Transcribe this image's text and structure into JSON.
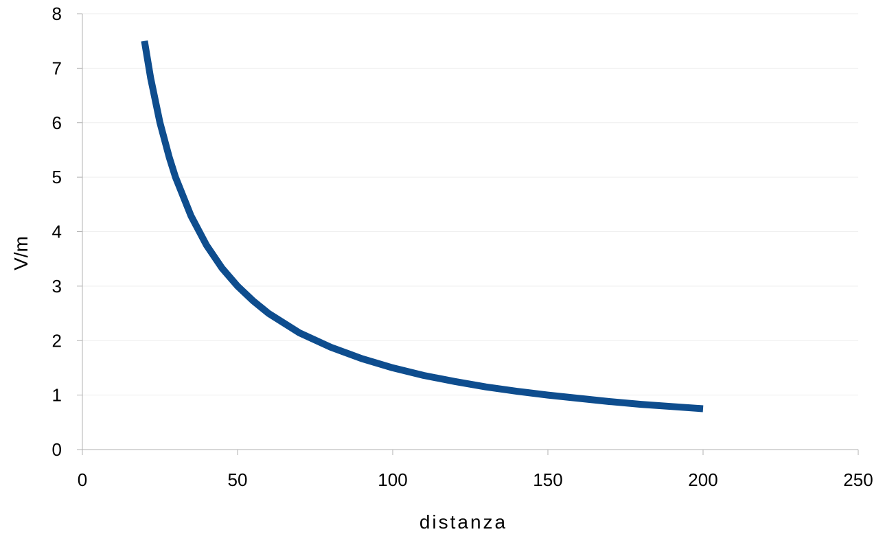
{
  "chart_data": {
    "type": "line",
    "title": "",
    "xlabel": "distanza",
    "ylabel": "V/m",
    "xlim": [
      0,
      250
    ],
    "ylim": [
      0,
      8
    ],
    "x_ticks": [
      0,
      50,
      100,
      150,
      200,
      250
    ],
    "y_ticks": [
      0,
      1,
      2,
      3,
      4,
      5,
      6,
      7,
      8
    ],
    "grid": "horizontal",
    "legend": "none",
    "series": [
      {
        "color": "#0e4d8e",
        "x": [
          20,
          22,
          25,
          28,
          30,
          35,
          40,
          45,
          50,
          55,
          60,
          70,
          80,
          90,
          100,
          110,
          120,
          130,
          140,
          150,
          160,
          170,
          180,
          190,
          200
        ],
        "y": [
          7.5,
          6.82,
          6.0,
          5.36,
          5.0,
          4.29,
          3.75,
          3.33,
          3.0,
          2.73,
          2.5,
          2.14,
          1.88,
          1.67,
          1.5,
          1.36,
          1.25,
          1.15,
          1.07,
          1.0,
          0.94,
          0.88,
          0.83,
          0.79,
          0.75
        ]
      }
    ]
  }
}
